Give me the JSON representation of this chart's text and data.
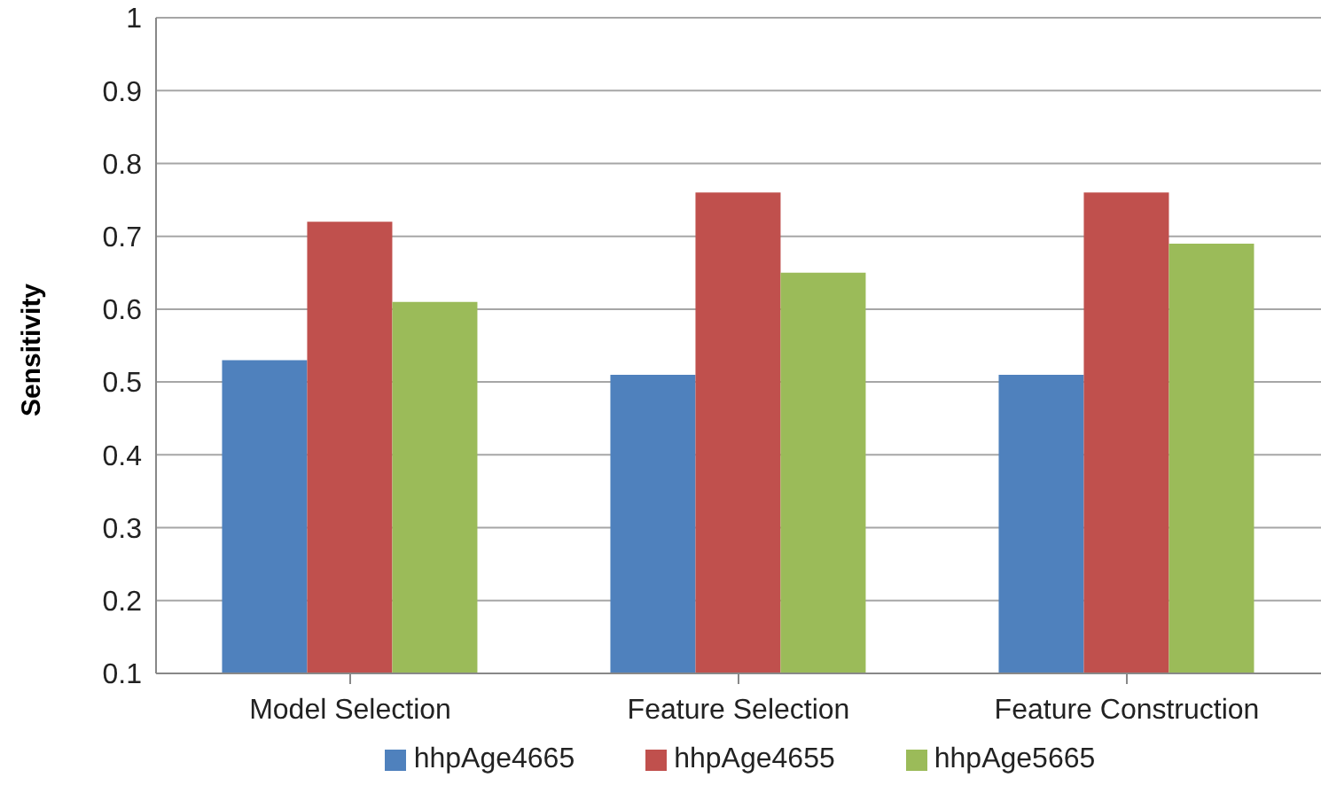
{
  "chart_data": {
    "type": "bar",
    "ylabel": "Sensitivity",
    "categories": [
      "Model Selection",
      "Feature Selection",
      "Feature Construction"
    ],
    "series": [
      {
        "name": "hhpAge4665",
        "color": "#4f81bd",
        "values": [
          0.53,
          0.51,
          0.51
        ]
      },
      {
        "name": "hhpAge4655",
        "color": "#c0504d",
        "values": [
          0.72,
          0.76,
          0.76
        ]
      },
      {
        "name": "hhpAge5665",
        "color": "#9bbb59",
        "values": [
          0.61,
          0.65,
          0.69
        ]
      }
    ],
    "ylim": [
      0.1,
      1
    ],
    "yticks": [
      0.1,
      0.2,
      0.3,
      0.4,
      0.5,
      0.6,
      0.7,
      0.8,
      0.9,
      1
    ],
    "grid": "y",
    "legend": "bottom"
  }
}
